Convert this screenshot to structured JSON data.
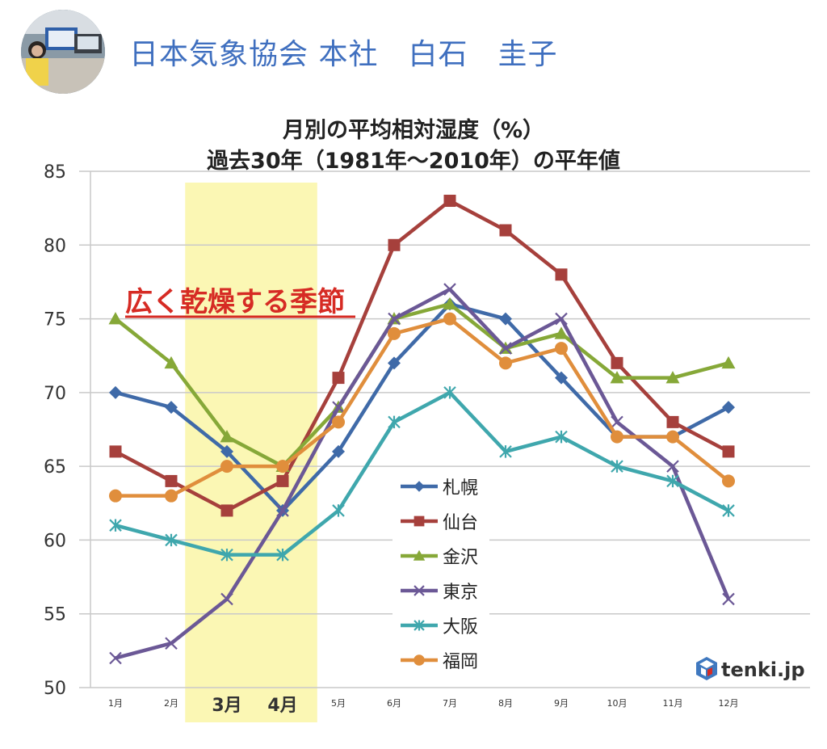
{
  "author": {
    "name": "日本気象協会 本社　白石　圭子"
  },
  "logo": {
    "text": "tenki.jp",
    "icon": "tenki-cube-icon"
  },
  "chart_data": {
    "type": "line",
    "title": "月別の平均相対湿度（%）",
    "subtitle": "過去30年（1981年～2010年）の平年値",
    "categories": [
      "1月",
      "2月",
      "3月",
      "4月",
      "5月",
      "6月",
      "7月",
      "8月",
      "9月",
      "10月",
      "11月",
      "12月"
    ],
    "ylim": [
      50,
      85
    ],
    "yticks": [
      50,
      55,
      60,
      65,
      70,
      75,
      80,
      85
    ],
    "grid": true,
    "legend_position": "center",
    "highlight": {
      "label": "広く乾燥する季節",
      "categories": [
        "3月",
        "4月"
      ],
      "color": "#fbf7b4",
      "label_color": "#d62b24"
    },
    "series": [
      {
        "name": "札幌",
        "color": "#3f6aa8",
        "marker": "diamond",
        "values": [
          70,
          69,
          66,
          62,
          66,
          72,
          76,
          75,
          71,
          67,
          67,
          69
        ]
      },
      {
        "name": "仙台",
        "color": "#a6403c",
        "marker": "square",
        "values": [
          66,
          64,
          62,
          64,
          71,
          80,
          83,
          81,
          78,
          72,
          68,
          66
        ]
      },
      {
        "name": "金沢",
        "color": "#86a838",
        "marker": "triangle",
        "values": [
          75,
          72,
          67,
          65,
          69,
          75,
          76,
          73,
          74,
          71,
          71,
          72
        ]
      },
      {
        "name": "東京",
        "color": "#6b5896",
        "marker": "x",
        "values": [
          52,
          53,
          56,
          62,
          69,
          75,
          77,
          73,
          75,
          68,
          65,
          56
        ]
      },
      {
        "name": "大阪",
        "color": "#3fa7ad",
        "marker": "star",
        "values": [
          61,
          60,
          59,
          59,
          62,
          68,
          70,
          66,
          67,
          65,
          64,
          62
        ]
      },
      {
        "name": "福岡",
        "color": "#e08e3c",
        "marker": "circle",
        "values": [
          63,
          63,
          65,
          65,
          68,
          74,
          75,
          72,
          73,
          67,
          67,
          64
        ]
      }
    ]
  }
}
